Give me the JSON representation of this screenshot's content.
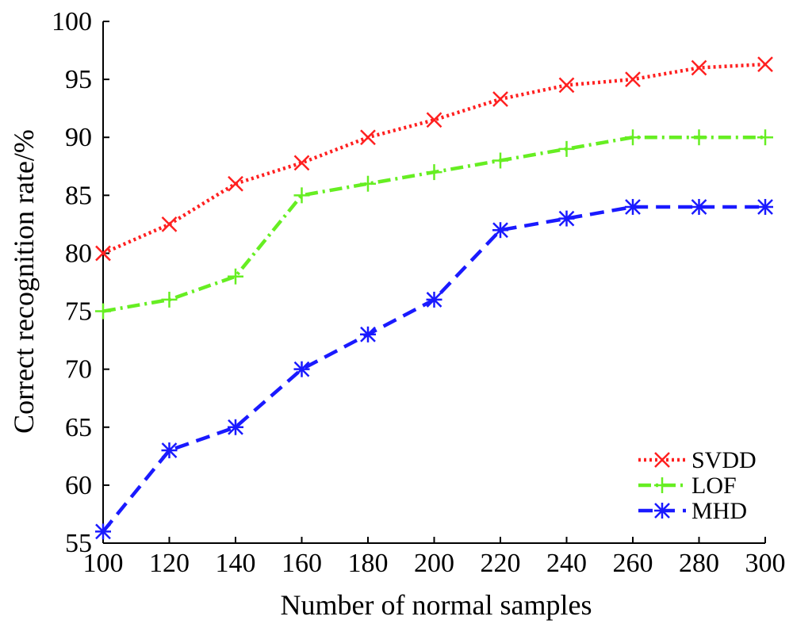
{
  "chart_data": {
    "type": "line",
    "title": "",
    "xlabel": "Number of normal samples",
    "ylabel": "Correct recognition rate/%",
    "x": [
      100,
      120,
      140,
      160,
      180,
      200,
      220,
      240,
      260,
      280,
      300
    ],
    "xlim": [
      100,
      300
    ],
    "ylim": [
      55,
      100
    ],
    "xticks": [
      100,
      120,
      140,
      160,
      180,
      200,
      220,
      240,
      260,
      280,
      300
    ],
    "yticks": [
      55,
      60,
      65,
      70,
      75,
      80,
      85,
      90,
      95,
      100
    ],
    "grid": false,
    "legend_position": "bottom-right",
    "series": [
      {
        "name": "SVDD",
        "color": "#ff2020",
        "line_style": "dotted",
        "marker": "x",
        "values": [
          80,
          82.5,
          86,
          87.8,
          90,
          91.5,
          93.3,
          94.5,
          95,
          96,
          96.3
        ]
      },
      {
        "name": "LOF",
        "color": "#66ee22",
        "line_style": "dash-dot",
        "marker": "plus",
        "values": [
          75,
          76,
          78,
          85,
          86,
          87,
          88,
          89,
          90,
          90,
          90
        ]
      },
      {
        "name": "MHD",
        "color": "#1a1aff",
        "line_style": "dashed",
        "marker": "asterisk",
        "values": [
          56,
          63,
          65,
          70,
          73,
          76,
          82,
          83,
          84,
          84,
          84
        ]
      }
    ]
  }
}
